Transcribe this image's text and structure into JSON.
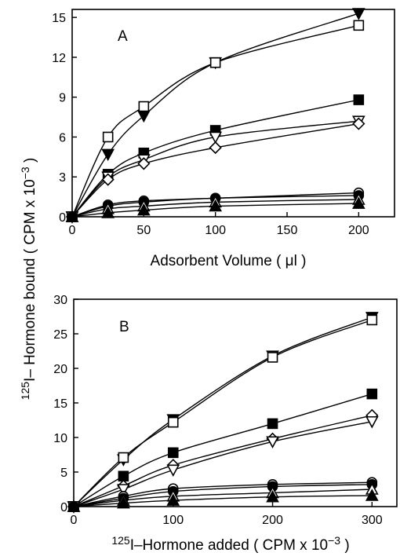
{
  "figure": {
    "ylabel_iso": "125",
    "ylabel_text": "I– Hormone bound ( CPM x 10",
    "ylabel_exp": "−3",
    "ylabel_close": " )"
  },
  "chart_data": [
    {
      "type": "line",
      "panel_label": "A",
      "xlabel": "Adsorbent Volume ( μl )",
      "xlim": [
        0,
        225
      ],
      "ylim": [
        0,
        15.6
      ],
      "xticks": [
        0,
        50,
        100,
        150,
        200
      ],
      "yticks": [
        0,
        3,
        6,
        9,
        12,
        15
      ],
      "x": [
        0,
        25,
        50,
        100,
        200
      ],
      "series": [
        {
          "marker": "triangle-down-filled",
          "values": [
            0,
            4.7,
            7.6,
            11.6,
            15.3
          ]
        },
        {
          "marker": "square-open",
          "values": [
            0,
            6.0,
            8.3,
            11.6,
            14.4
          ]
        },
        {
          "marker": "square-filled",
          "values": [
            0,
            3.2,
            4.8,
            6.5,
            8.8
          ]
        },
        {
          "marker": "triangle-down-open",
          "values": [
            0,
            3.0,
            4.3,
            6.0,
            7.2
          ]
        },
        {
          "marker": "diamond-open",
          "values": [
            0,
            2.8,
            4.0,
            5.2,
            7.0
          ]
        },
        {
          "marker": "circle-open",
          "values": [
            0,
            0.9,
            1.2,
            1.4,
            1.8
          ]
        },
        {
          "marker": "circle-filled",
          "values": [
            0,
            0.8,
            1.1,
            1.4,
            1.6
          ]
        },
        {
          "marker": "triangle-up-open",
          "values": [
            0,
            0.6,
            0.8,
            1.1,
            1.3
          ]
        },
        {
          "marker": "triangle-up-filled",
          "values": [
            0,
            0.3,
            0.5,
            0.8,
            1.0
          ]
        }
      ]
    },
    {
      "type": "line",
      "panel_label": "B",
      "xlabel_iso": "125",
      "xlabel_text": "I–Hormone added ( CPM x 10",
      "xlabel_exp": "−3",
      "xlabel_close": " )",
      "xlim": [
        0,
        325
      ],
      "ylim": [
        0,
        30
      ],
      "xticks": [
        0,
        100,
        200,
        300
      ],
      "yticks": [
        0,
        5,
        10,
        15,
        20,
        25,
        30
      ],
      "x": [
        0,
        50,
        100,
        200,
        300
      ],
      "series": [
        {
          "marker": "triangle-down-filled",
          "values": [
            0,
            6.8,
            12.6,
            21.8,
            27.4
          ]
        },
        {
          "marker": "square-open",
          "values": [
            0,
            7.1,
            12.2,
            21.6,
            27.0
          ]
        },
        {
          "marker": "square-filled",
          "values": [
            0,
            4.4,
            7.8,
            12.0,
            16.3
          ]
        },
        {
          "marker": "diamond-open",
          "values": [
            0,
            3.0,
            6.0,
            9.8,
            13.2
          ]
        },
        {
          "marker": "triangle-down-open",
          "values": [
            0,
            2.5,
            5.3,
            9.4,
            12.3
          ]
        },
        {
          "marker": "circle-open",
          "values": [
            0,
            1.5,
            2.6,
            3.2,
            3.5
          ]
        },
        {
          "marker": "circle-filled",
          "values": [
            0,
            1.2,
            2.2,
            2.9,
            3.2
          ]
        },
        {
          "marker": "triangle-up-open",
          "values": [
            0,
            0.9,
            1.5,
            2.0,
            2.5
          ]
        },
        {
          "marker": "triangle-up-filled",
          "values": [
            0,
            0.5,
            0.9,
            1.4,
            1.6
          ]
        }
      ]
    }
  ]
}
